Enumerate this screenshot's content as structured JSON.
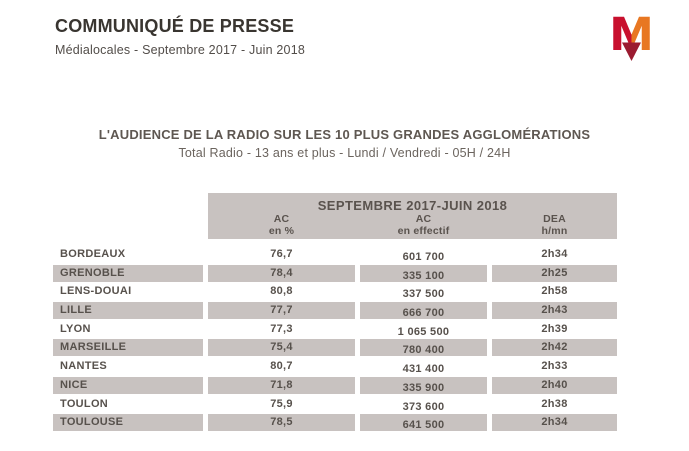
{
  "header": {
    "title": "COMMUNIQUÉ DE PRESSE",
    "subtitle": "Médialocales - Septembre 2017 - Juin 2018"
  },
  "logo": {
    "name": "mediametrie-m-logo",
    "letter": "M",
    "color_red": "#c8102e",
    "color_orange": "#e87722",
    "color_dark_red": "#9b1b30"
  },
  "section": {
    "title": "L'AUDIENCE DE LA RADIO SUR LES 10 PLUS GRANDES AGGLOMÉRATIONS",
    "subtitle": "Total Radio - 13 ans et plus - Lundi / Vendredi - 05H / 24H"
  },
  "table": {
    "period_header": "SEPTEMBRE 2017-JUIN 2018",
    "columns": [
      {
        "top": "AC",
        "bottom": "en %"
      },
      {
        "top": "AC",
        "bottom": "en effectif"
      },
      {
        "top": "DEA",
        "bottom": "h/mn"
      }
    ],
    "rows": [
      {
        "city": "BORDEAUX",
        "ac_pct": "76,7",
        "ac_eff": "601 700",
        "dea": "2h34"
      },
      {
        "city": "GRENOBLE",
        "ac_pct": "78,4",
        "ac_eff": "335 100",
        "dea": "2h25"
      },
      {
        "city": "LENS-DOUAI",
        "ac_pct": "80,8",
        "ac_eff": "337 500",
        "dea": "2h58"
      },
      {
        "city": "LILLE",
        "ac_pct": "77,7",
        "ac_eff": "666 700",
        "dea": "2h43"
      },
      {
        "city": "LYON",
        "ac_pct": "77,3",
        "ac_eff": "1 065 500",
        "dea": "2h39"
      },
      {
        "city": "MARSEILLE",
        "ac_pct": "75,4",
        "ac_eff": "780 400",
        "dea": "2h42"
      },
      {
        "city": "NANTES",
        "ac_pct": "80,7",
        "ac_eff": "431 400",
        "dea": "2h33"
      },
      {
        "city": "NICE",
        "ac_pct": "71,8",
        "ac_eff": "335 900",
        "dea": "2h40"
      },
      {
        "city": "TOULON",
        "ac_pct": "75,9",
        "ac_eff": "373 600",
        "dea": "2h38"
      },
      {
        "city": "TOULOUSE",
        "ac_pct": "78,5",
        "ac_eff": "641 500",
        "dea": "2h34"
      }
    ]
  },
  "colors": {
    "table_gray": "#c8c2c0",
    "text_dark": "#393530",
    "text_table": "#57514c"
  }
}
